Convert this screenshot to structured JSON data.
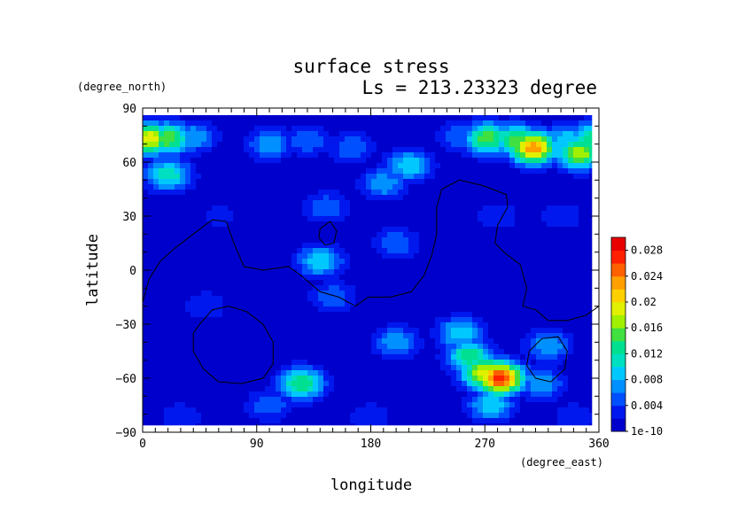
{
  "chart_data": {
    "type": "heatmap",
    "title": "surface stress",
    "subtitle": "Ls = 213.23323 degree",
    "xlabel": "longitude",
    "ylabel": "latitude",
    "x_units": "(degree_east)",
    "y_units": "(degree_north)",
    "xlim": [
      0,
      360
    ],
    "ylim": [
      -90,
      90
    ],
    "x_ticks": [
      "0",
      "90",
      "180",
      "270",
      "360"
    ],
    "y_ticks": [
      "90",
      "60",
      "30",
      "0",
      "−30",
      "−60",
      "−90"
    ],
    "colorbar": {
      "min": 1e-10,
      "max": 0.03,
      "tick_labels": [
        "1e-10",
        "0.004",
        "0.008",
        "0.012",
        "0.016",
        "0.02",
        "0.024",
        "0.028"
      ],
      "colors": [
        "#0000cc",
        "#0018ee",
        "#0050ff",
        "#0090ff",
        "#00c8ff",
        "#00e0c0",
        "#00e090",
        "#40e040",
        "#a0f000",
        "#e0f000",
        "#ffd000",
        "#ffa000",
        "#ff6000",
        "#ff2000",
        "#e80000"
      ]
    },
    "background_value": 0.002,
    "features": [
      {
        "lon": 5,
        "lat": 73,
        "value": 0.02
      },
      {
        "lon": 20,
        "lat": 73,
        "value": 0.016
      },
      {
        "lon": 40,
        "lat": 74,
        "value": 0.008
      },
      {
        "lon": 20,
        "lat": 53,
        "value": 0.012
      },
      {
        "lon": 100,
        "lat": 70,
        "value": 0.008
      },
      {
        "lon": 130,
        "lat": 72,
        "value": 0.006
      },
      {
        "lon": 165,
        "lat": 68,
        "value": 0.006
      },
      {
        "lon": 210,
        "lat": 58,
        "value": 0.01
      },
      {
        "lon": 190,
        "lat": 48,
        "value": 0.008
      },
      {
        "lon": 250,
        "lat": 74,
        "value": 0.006
      },
      {
        "lon": 272,
        "lat": 73,
        "value": 0.016
      },
      {
        "lon": 295,
        "lat": 72,
        "value": 0.016
      },
      {
        "lon": 308,
        "lat": 68,
        "value": 0.024
      },
      {
        "lon": 335,
        "lat": 72,
        "value": 0.01
      },
      {
        "lon": 345,
        "lat": 65,
        "value": 0.018
      },
      {
        "lon": 355,
        "lat": 73,
        "value": 0.014
      },
      {
        "lon": 145,
        "lat": 35,
        "value": 0.006
      },
      {
        "lon": 140,
        "lat": 5,
        "value": 0.01
      },
      {
        "lon": 150,
        "lat": -15,
        "value": 0.006
      },
      {
        "lon": 200,
        "lat": 15,
        "value": 0.006
      },
      {
        "lon": 250,
        "lat": -35,
        "value": 0.01
      },
      {
        "lon": 258,
        "lat": -48,
        "value": 0.014
      },
      {
        "lon": 270,
        "lat": -57,
        "value": 0.02
      },
      {
        "lon": 282,
        "lat": -60,
        "value": 0.028
      },
      {
        "lon": 200,
        "lat": -40,
        "value": 0.008
      },
      {
        "lon": 125,
        "lat": -63,
        "value": 0.014
      },
      {
        "lon": 320,
        "lat": -42,
        "value": 0.008
      },
      {
        "lon": 315,
        "lat": -63,
        "value": 0.008
      },
      {
        "lon": 275,
        "lat": -75,
        "value": 0.01
      },
      {
        "lon": 100,
        "lat": -75,
        "value": 0.006
      },
      {
        "lon": 180,
        "lat": -82,
        "value": 0.004
      },
      {
        "lon": 340,
        "lat": -82,
        "value": 0.004
      },
      {
        "lon": 30,
        "lat": -82,
        "value": 0.004
      },
      {
        "lon": 60,
        "lat": 30,
        "value": 0.003
      },
      {
        "lon": 280,
        "lat": 30,
        "value": 0.004
      },
      {
        "lon": 330,
        "lat": 30,
        "value": 0.004
      },
      {
        "lon": 50,
        "lat": -20,
        "value": 0.004
      }
    ],
    "contours": [
      {
        "closed": false,
        "points": [
          [
            0,
            -18
          ],
          [
            5,
            -5
          ],
          [
            14,
            5
          ],
          [
            25,
            12
          ],
          [
            40,
            20
          ],
          [
            55,
            28
          ],
          [
            66,
            27
          ],
          [
            72,
            15
          ],
          [
            80,
            2
          ],
          [
            95,
            0
          ],
          [
            115,
            2
          ],
          [
            125,
            -3
          ],
          [
            140,
            -12
          ],
          [
            155,
            -15
          ],
          [
            168,
            -20
          ],
          [
            178,
            -15
          ],
          [
            195,
            -15
          ],
          [
            212,
            -12
          ],
          [
            222,
            -3
          ],
          [
            228,
            8
          ],
          [
            232,
            20
          ],
          [
            232,
            35
          ],
          [
            236,
            45
          ],
          [
            250,
            50
          ],
          [
            268,
            47
          ],
          [
            287,
            42
          ],
          [
            288,
            35
          ],
          [
            280,
            25
          ],
          [
            278,
            15
          ],
          [
            285,
            10
          ],
          [
            298,
            3
          ],
          [
            303,
            -10
          ],
          [
            300,
            -20
          ],
          [
            310,
            -22
          ],
          [
            320,
            -28
          ],
          [
            335,
            -28
          ],
          [
            350,
            -25
          ],
          [
            360,
            -20
          ]
        ]
      },
      {
        "closed": true,
        "points": [
          [
            140,
            23
          ],
          [
            148,
            27
          ],
          [
            153,
            22
          ],
          [
            151,
            15
          ],
          [
            144,
            14
          ],
          [
            139,
            18
          ]
        ]
      },
      {
        "closed": true,
        "points": [
          [
            45,
            -30
          ],
          [
            55,
            -22
          ],
          [
            68,
            -20
          ],
          [
            82,
            -23
          ],
          [
            95,
            -30
          ],
          [
            103,
            -40
          ],
          [
            103,
            -52
          ],
          [
            95,
            -60
          ],
          [
            78,
            -63
          ],
          [
            60,
            -62
          ],
          [
            48,
            -55
          ],
          [
            40,
            -45
          ],
          [
            40,
            -35
          ]
        ]
      },
      {
        "closed": true,
        "points": [
          [
            305,
            -45
          ],
          [
            315,
            -38
          ],
          [
            328,
            -37
          ],
          [
            335,
            -45
          ],
          [
            333,
            -55
          ],
          [
            322,
            -62
          ],
          [
            310,
            -60
          ],
          [
            303,
            -53
          ]
        ]
      }
    ]
  }
}
